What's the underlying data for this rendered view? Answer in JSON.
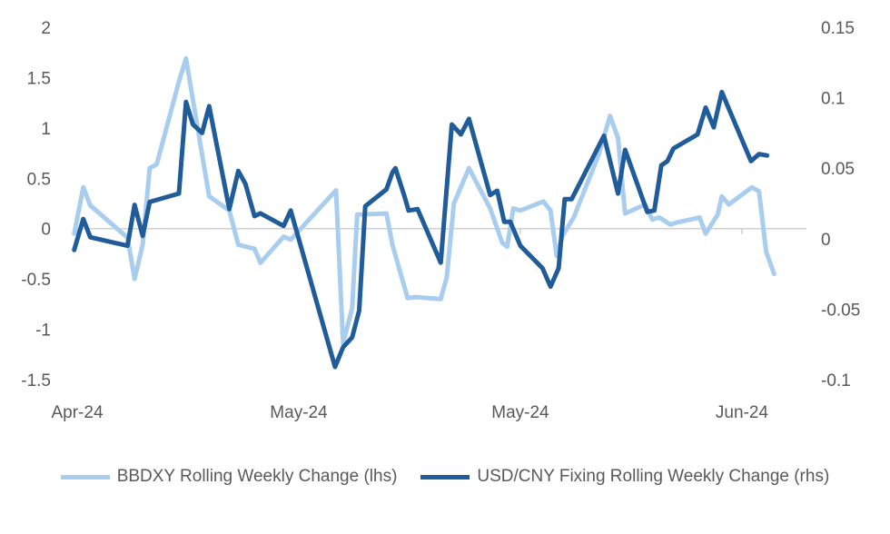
{
  "chart_data": {
    "type": "line",
    "title": "",
    "xlabel": "",
    "ylabel": "",
    "x_unit": "trading day index (Apr-24 tick = 0)",
    "xlim": [
      -0.3,
      72.4
    ],
    "x_ticks": [
      {
        "x": 0,
        "label": "Apr-24"
      },
      {
        "x": 22,
        "label": "May-24"
      },
      {
        "x": 44,
        "label": "May-24"
      },
      {
        "x": 66,
        "label": "Jun-24"
      }
    ],
    "y_left": {
      "lim": [
        -1.5,
        2
      ],
      "ticks": [
        2,
        1.5,
        1,
        0.5,
        0,
        -0.5,
        -1,
        -1.5
      ],
      "tick_labels": [
        "2",
        "1.5",
        "1",
        "0.5",
        "0",
        "-0.5",
        "-1",
        "-1.5"
      ]
    },
    "y_right": {
      "lim": [
        -0.1,
        0.15
      ],
      "ticks": [
        0.15,
        0.1,
        0.05,
        0,
        -0.05,
        -0.1
      ],
      "tick_labels": [
        "0.15",
        "0.1",
        "0.05",
        "0",
        "-0.05",
        "-0.1"
      ]
    },
    "grid": false,
    "legend_position": "bottom",
    "series": [
      {
        "name": "BBDXY Rolling Weekly Change (lhs)",
        "axis": "left",
        "color": "#a9cdee",
        "x": [
          -0.3,
          0.6,
          1.3,
          5.0,
          5.7,
          6.5,
          7.2,
          7.9,
          10.1,
          10.8,
          13.1,
          15.1,
          16.0,
          17.6,
          18.2,
          20.5,
          21.2,
          25.7,
          26.4,
          27.3,
          27.8,
          30.7,
          31.3,
          32.8,
          33.6,
          36.1,
          36.7,
          37.4,
          38.9,
          41.0,
          42.2,
          42.7,
          43.3,
          44.0,
          46.3,
          47.0,
          47.6,
          48.2,
          49.3,
          51.8,
          52.9,
          53.7,
          54.4,
          56.4,
          57.1,
          57.8,
          58.9,
          59.5,
          61.8,
          62.4,
          63.6,
          64.0,
          64.7,
          67.0,
          67.7,
          68.4,
          69.2
        ],
        "values": [
          -0.05,
          0.41,
          0.23,
          -0.09,
          -0.5,
          -0.16,
          0.6,
          0.64,
          1.46,
          1.69,
          0.32,
          0.18,
          -0.16,
          -0.2,
          -0.34,
          -0.08,
          -0.11,
          0.38,
          -1.14,
          -0.79,
          0.14,
          0.15,
          -0.16,
          -0.69,
          -0.68,
          -0.7,
          -0.48,
          0.25,
          0.6,
          0.2,
          -0.14,
          -0.18,
          0.2,
          0.18,
          0.27,
          0.18,
          -0.27,
          -0.07,
          0.11,
          0.74,
          1.12,
          0.9,
          0.15,
          0.24,
          0.09,
          0.11,
          0.04,
          0.06,
          0.11,
          -0.05,
          0.14,
          0.32,
          0.24,
          0.41,
          0.37,
          -0.23,
          -0.45
        ]
      },
      {
        "name": "USD/CNY Fixing Rolling Weekly Change (rhs)",
        "axis": "right",
        "color": "#1f5c99",
        "x": [
          -0.3,
          0.6,
          1.3,
          5.0,
          5.7,
          6.5,
          7.2,
          10.1,
          10.8,
          11.5,
          12.4,
          13.1,
          15.1,
          16.0,
          16.7,
          17.6,
          18.2,
          20.5,
          21.2,
          25.6,
          26.4,
          27.3,
          28.0,
          28.6,
          30.7,
          31.3,
          31.6,
          32.5,
          32.9,
          33.8,
          36.1,
          37.2,
          38.1,
          38.9,
          41.0,
          41.7,
          42.4,
          43.0,
          44.0,
          46.2,
          47.0,
          47.8,
          48.4,
          49.1,
          52.3,
          53.7,
          54.4,
          56.6,
          57.3,
          58.0,
          58.6,
          59.2,
          61.6,
          62.4,
          63.2,
          64.0,
          66.9,
          67.7,
          68.5
        ],
        "values": [
          -0.008,
          0.014,
          0.001,
          -0.005,
          0.024,
          0.002,
          0.026,
          0.032,
          0.097,
          0.081,
          0.075,
          0.094,
          0.021,
          0.048,
          0.039,
          0.016,
          0.018,
          0.009,
          0.02,
          -0.091,
          -0.077,
          -0.07,
          -0.051,
          0.023,
          0.035,
          0.047,
          0.05,
          0.03,
          0.02,
          0.021,
          -0.017,
          0.081,
          0.074,
          0.085,
          0.031,
          0.034,
          0.012,
          0.012,
          -0.005,
          -0.021,
          -0.034,
          -0.021,
          0.028,
          0.028,
          0.073,
          0.032,
          0.063,
          0.019,
          0.02,
          0.052,
          0.055,
          0.064,
          0.074,
          0.093,
          0.079,
          0.104,
          0.055,
          0.06,
          0.059
        ]
      }
    ]
  }
}
